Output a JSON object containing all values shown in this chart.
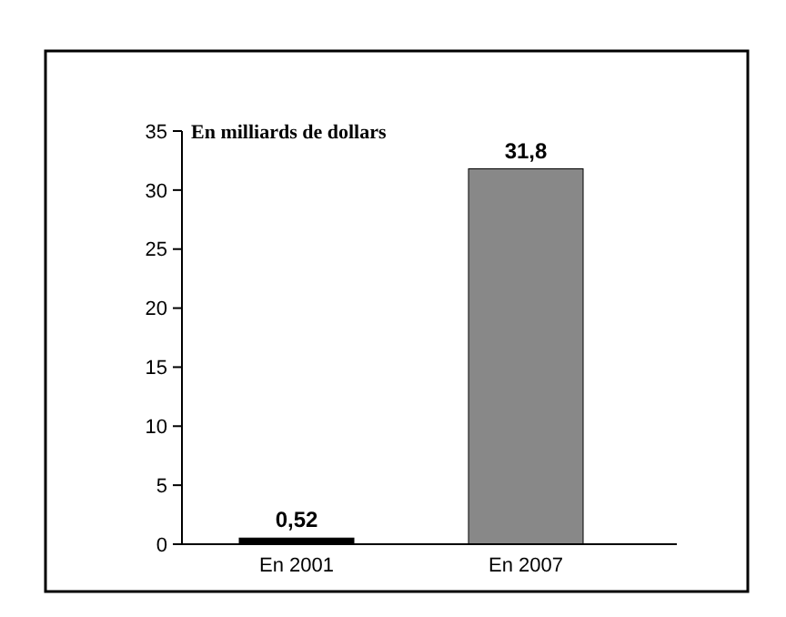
{
  "chart_data": {
    "type": "bar",
    "ylabel": "En milliards de dollars",
    "categories": [
      "En 2001",
      "En 2007"
    ],
    "values": [
      0.52,
      31.8
    ],
    "colors": [
      "#000000",
      "#888888"
    ],
    "value_labels": [
      "0,52",
      "31,8"
    ],
    "ylim": [
      0,
      35
    ],
    "yticks": [
      0,
      5,
      10,
      15,
      20,
      25,
      30,
      35
    ],
    "grid": false
  }
}
